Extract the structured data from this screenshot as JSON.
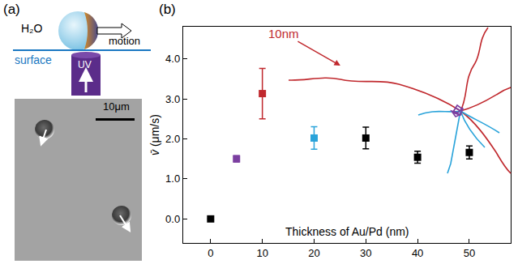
{
  "panels": {
    "a": {
      "label": "(a)",
      "water": "H₂O",
      "motion": "motion",
      "surface": "surface",
      "light": "UV",
      "scale_bar": "10μm"
    },
    "b": {
      "label": "(b)"
    }
  },
  "chart_data": {
    "type": "scatter",
    "x_label": "Thickness of Au/Pd (nm)",
    "y_label": "v̄ (μm/s)",
    "x": [
      0,
      5,
      10,
      20,
      30,
      40,
      50
    ],
    "values": [
      0,
      1.5,
      3.13,
      2.02,
      2.02,
      1.54,
      1.66
    ],
    "errors": [
      0,
      0.08,
      0.63,
      0.28,
      0.27,
      0.15,
      0.16
    ],
    "colors": [
      "#000000",
      "#7b3fa0",
      "#c0282d",
      "#29a3da",
      "#000000",
      "#000000",
      "#000000"
    ],
    "marker": "square",
    "xlim": [
      -5.3,
      58
    ],
    "xticks": [
      0,
      10,
      20,
      30,
      40,
      50
    ],
    "ylim": [
      -0.6,
      4.8
    ],
    "yticks": [
      {
        "value": 0,
        "label": "0.0"
      },
      {
        "value": 1,
        "label": "1.0"
      },
      {
        "value": 2,
        "label": "2.0"
      },
      {
        "value": 3,
        "label": "3.0"
      },
      {
        "value": 4,
        "label": "4.0"
      }
    ],
    "annotations": [
      {
        "text": "10nm",
        "color": "#c0282d"
      }
    ],
    "grid": false
  }
}
